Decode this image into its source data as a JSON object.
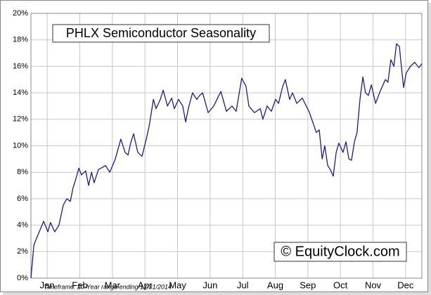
{
  "chart_data": {
    "type": "line",
    "title": "PHLX Semiconductor Seasonality",
    "watermark": "© EquityClock.com",
    "footnote": "Timeframe: 20-Year range ending 12/31/2014",
    "color": "#1c1c8f",
    "grid": true,
    "xlim": [
      0,
      12
    ],
    "xticks": [
      {
        "value": 0.5,
        "label": "Jan"
      },
      {
        "value": 1.5,
        "label": "Feb"
      },
      {
        "value": 2.5,
        "label": "Mar"
      },
      {
        "value": 3.5,
        "label": "Apr"
      },
      {
        "value": 4.5,
        "label": "May"
      },
      {
        "value": 5.5,
        "label": "Jun"
      },
      {
        "value": 6.5,
        "label": "Jul"
      },
      {
        "value": 7.5,
        "label": "Aug"
      },
      {
        "value": 8.5,
        "label": "Sep"
      },
      {
        "value": 9.5,
        "label": "Oct"
      },
      {
        "value": 10.5,
        "label": "Nov"
      },
      {
        "value": 11.5,
        "label": "Dec"
      }
    ],
    "ylim": [
      0,
      20
    ],
    "yticks": [
      {
        "value": 0,
        "label": "0%"
      },
      {
        "value": 2,
        "label": "2%"
      },
      {
        "value": 4,
        "label": "4%"
      },
      {
        "value": 6,
        "label": "6%"
      },
      {
        "value": 8,
        "label": "8%"
      },
      {
        "value": 10,
        "label": "10%"
      },
      {
        "value": 12,
        "label": "12%"
      },
      {
        "value": 14,
        "label": "14%"
      },
      {
        "value": 16,
        "label": "16%"
      },
      {
        "value": 18,
        "label": "18%"
      },
      {
        "value": 20,
        "label": "20%"
      }
    ],
    "x": [
      0,
      0.09,
      0.17,
      0.39,
      0.52,
      0.6,
      0.73,
      0.86,
      0.99,
      1.1,
      1.21,
      1.29,
      1.38,
      1.47,
      1.55,
      1.68,
      1.77,
      1.86,
      1.94,
      2.07,
      2.29,
      2.42,
      2.59,
      2.76,
      2.89,
      2.98,
      3.06,
      3.15,
      3.28,
      3.41,
      3.54,
      3.63,
      3.76,
      3.84,
      3.97,
      4.06,
      4.19,
      4.32,
      4.4,
      4.53,
      4.66,
      4.75,
      4.83,
      4.96,
      5.09,
      5.18,
      5.27,
      5.44,
      5.61,
      5.83,
      6.0,
      6.17,
      6.3,
      6.47,
      6.6,
      6.69,
      6.86,
      7.04,
      7.12,
      7.25,
      7.38,
      7.51,
      7.6,
      7.73,
      7.81,
      7.94,
      8.03,
      8.16,
      8.33,
      8.55,
      8.76,
      8.85,
      8.94,
      9.02,
      9.11,
      9.19,
      9.28,
      9.37,
      9.45,
      9.58,
      9.67,
      9.76,
      9.84,
      9.93,
      10.01,
      10.1,
      10.19,
      10.27,
      10.36,
      10.45,
      10.58,
      10.7,
      10.79,
      10.88,
      10.96,
      11.05,
      11.14,
      11.22,
      11.31,
      11.35,
      11.44,
      11.52,
      11.65,
      11.78,
      11.91,
      12.0
    ],
    "values": [
      0,
      2.5,
      3,
      4.3,
      3.5,
      4.2,
      3.5,
      4,
      5.5,
      6,
      5.8,
      6.8,
      7.5,
      8.3,
      7.8,
      8.1,
      7,
      8,
      7.2,
      8.2,
      8.5,
      8,
      9,
      10.5,
      9.5,
      9.3,
      10.2,
      10.9,
      9.5,
      9.2,
      10.5,
      11.5,
      13.5,
      12.8,
      13.5,
      14.2,
      13,
      13.6,
      12.8,
      13.5,
      13,
      11.8,
      12.8,
      14,
      13.5,
      13.8,
      14,
      12.5,
      13,
      14.1,
      12.6,
      13,
      12.6,
      15.1,
      14.5,
      13,
      12.5,
      12.8,
      12,
      13,
      12.6,
      13.5,
      13.2,
      14.5,
      15,
      13.5,
      14,
      13.2,
      13.6,
      12.5,
      11,
      11.2,
      9,
      10,
      8.5,
      8.2,
      7.7,
      9.5,
      10.2,
      9.5,
      10.3,
      9,
      8.9,
      10.3,
      11,
      13.5,
      15.2,
      14,
      13.8,
      14.6,
      13.2,
      14,
      14.5,
      15,
      14.8,
      16.5,
      16,
      17.7,
      17.5,
      16.5,
      14.4,
      15.5,
      16,
      16.3,
      15.9,
      16.2
    ]
  }
}
